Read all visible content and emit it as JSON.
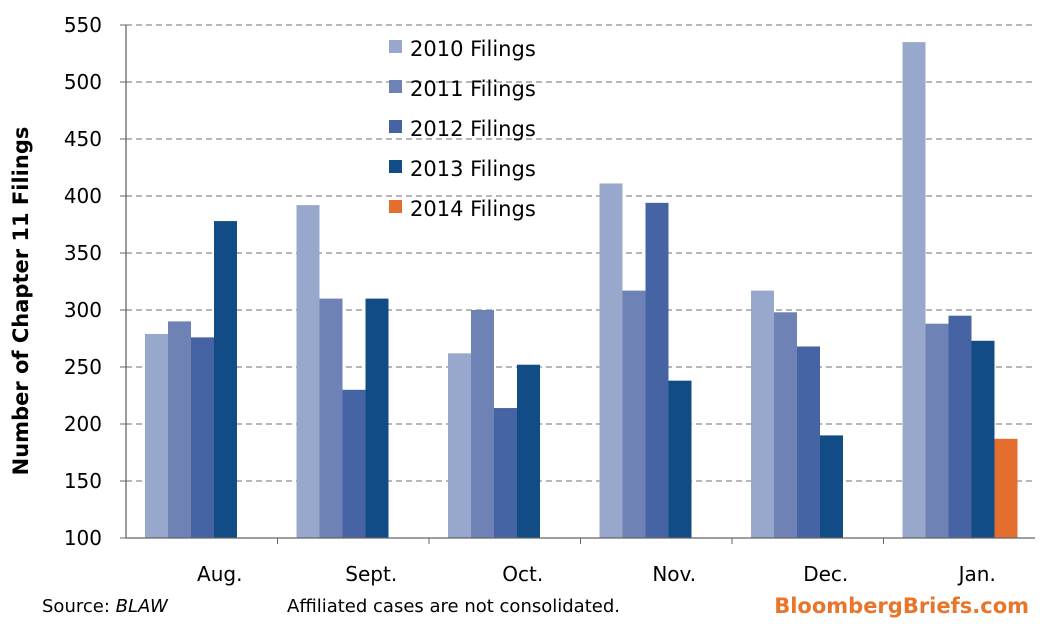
{
  "chart_data": {
    "type": "bar",
    "categories": [
      "Aug.",
      "Sept.",
      "Oct.",
      "Nov.",
      "Dec.",
      "Jan."
    ],
    "series": [
      {
        "name": "2010 Filings",
        "color": "#98a8cc",
        "values": [
          279,
          392,
          262,
          411,
          317,
          535
        ]
      },
      {
        "name": "2011 Filings",
        "color": "#6f82b5",
        "values": [
          290,
          310,
          300,
          317,
          298,
          288
        ]
      },
      {
        "name": "2012 Filings",
        "color": "#4664a3",
        "values": [
          276,
          230,
          214,
          394,
          268,
          295
        ]
      },
      {
        "name": "2013 Filings",
        "color": "#124c86",
        "values": [
          378,
          310,
          252,
          238,
          190,
          273
        ]
      },
      {
        "name": "2014 Filings",
        "color": "#e46e2e",
        "values": [
          null,
          null,
          null,
          null,
          null,
          187
        ]
      }
    ],
    "ylabel": "Number of Chapter 11 Filings",
    "xlabel": "",
    "ylim": [
      100,
      550
    ],
    "yticks": [
      100,
      150,
      200,
      250,
      300,
      350,
      400,
      450,
      500,
      550
    ],
    "grid": "horizontal dashed",
    "legend_position": "top-center"
  },
  "footer": {
    "source_prefix": "Source: ",
    "source_name": "BLAW",
    "note": "Affiliated cases are not consolidated.",
    "brand": "BloombergBriefs.com"
  }
}
